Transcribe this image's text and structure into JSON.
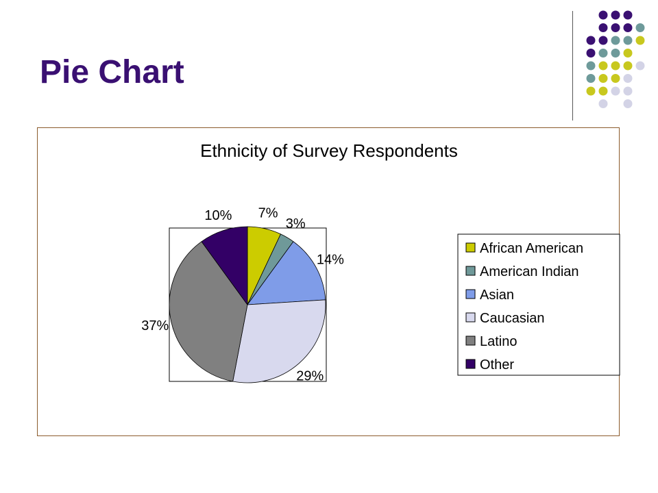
{
  "slide": {
    "title": "Pie Chart",
    "decor_colors": {
      "purple": "#3a1072",
      "teal": "#6e9a9a",
      "olive": "#c8c81e",
      "lavender": "#d3d3e6"
    }
  },
  "chart_data": {
    "type": "pie",
    "title": "Ethnicity of Survey Respondents",
    "legend_position": "right",
    "slices": [
      {
        "label": "African American",
        "value": 7,
        "display": "7%",
        "color": "#cccc00"
      },
      {
        "label": "American Indian",
        "value": 3,
        "display": "3%",
        "color": "#6f9999"
      },
      {
        "label": "Asian",
        "value": 14,
        "display": "14%",
        "color": "#7f9ce8"
      },
      {
        "label": "Caucasian",
        "value": 29,
        "display": "29%",
        "color": "#d8d9ee"
      },
      {
        "label": "Latino",
        "value": 37,
        "display": "37%",
        "color": "#808080"
      },
      {
        "label": "Other",
        "value": 10,
        "display": "10%",
        "color": "#330066"
      }
    ]
  }
}
